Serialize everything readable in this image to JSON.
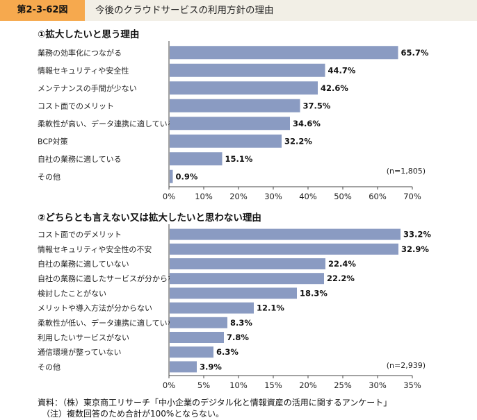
{
  "header": {
    "figure_label": "第2-3-62図",
    "title": "今後のクラウドサービスの利用方針の理由"
  },
  "chart_data": [
    {
      "type": "bar",
      "orientation": "horizontal",
      "title": "①拡大したいと思う理由",
      "categories": [
        "業務の効率化につながる",
        "情報セキュリティや安全性",
        "メンテナンスの手間が少ない",
        "コスト面でのメリット",
        "柔軟性が高い、データ連携に適している",
        "BCP対策",
        "自社の業務に適している",
        "その他"
      ],
      "values": [
        65.7,
        44.7,
        42.6,
        37.5,
        34.6,
        32.2,
        15.1,
        0.9
      ],
      "value_labels": [
        "65.7%",
        "44.7%",
        "42.6%",
        "37.5%",
        "34.6%",
        "32.2%",
        "15.1%",
        "0.9%"
      ],
      "xlim": [
        0,
        70
      ],
      "ticks": [
        "0%",
        "10%",
        "20%",
        "30%",
        "40%",
        "50%",
        "60%",
        "70%"
      ],
      "note": "(n=1,805)",
      "bar_color": "#8a9bc2"
    },
    {
      "type": "bar",
      "orientation": "horizontal",
      "title": "②どちらとも言えない又は拡大したいと思わない理由",
      "categories": [
        "コスト面でのデメリット",
        "情報セキュリティや安全性の不安",
        "自社の業務に適していない",
        "自社の業務に適したサービスが分からない",
        "検討したことがない",
        "メリットや導入方法が分からない",
        "柔軟性が低い、データ連携に適していない",
        "利用したいサービスがない",
        "通信環境が整っていない",
        "その他"
      ],
      "values": [
        33.2,
        32.9,
        22.4,
        22.2,
        18.3,
        12.1,
        8.3,
        7.8,
        6.3,
        3.9
      ],
      "value_labels": [
        "33.2%",
        "32.9%",
        "22.4%",
        "22.2%",
        "18.3%",
        "12.1%",
        "8.3%",
        "7.8%",
        "6.3%",
        "3.9%"
      ],
      "xlim": [
        0,
        35
      ],
      "ticks": [
        "0%",
        "5%",
        "10%",
        "15%",
        "20%",
        "25%",
        "30%",
        "35%"
      ],
      "note": "(n=2,939)",
      "bar_color": "#8a9bc2"
    }
  ],
  "footer": {
    "source": "資料：（株）東京商工リサーチ「中小企業のデジタル化と情報資産の活用に関するアンケート」",
    "note": "（注）複数回答のため合計が100%とならない。"
  }
}
